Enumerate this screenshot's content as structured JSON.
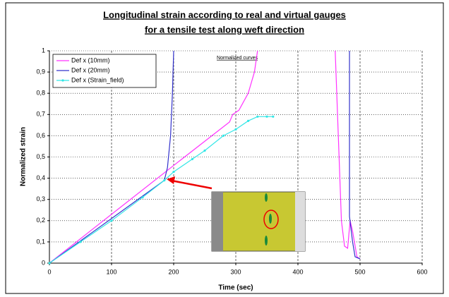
{
  "chart_data": {
    "type": "line",
    "title": "Longitudinal strain according to real and virtual gauges",
    "subtitle": "for a tensile test along weft direction",
    "annotation": "Normalized curves",
    "xlabel": "Time (sec)",
    "ylabel": "Normalized strain",
    "xlim": [
      0,
      600
    ],
    "ylim": [
      0,
      1
    ],
    "xticks": [
      0,
      100,
      200,
      300,
      400,
      500,
      600
    ],
    "yticks": [
      0,
      {
        "value": 0.1,
        "label": "0,1"
      },
      {
        "value": 0.2,
        "label": "0,2"
      },
      {
        "value": 0.3,
        "label": "0,3"
      },
      {
        "value": 0.4,
        "label": "0,4"
      },
      {
        "value": 0.5,
        "label": "0,5"
      },
      {
        "value": 0.6,
        "label": "0,6"
      },
      {
        "value": 0.7,
        "label": "0,7"
      },
      {
        "value": 0.8,
        "label": "0,8"
      },
      {
        "value": 0.9,
        "label": "0,9"
      },
      1
    ],
    "grid": true,
    "legend": "upper-left",
    "series": [
      {
        "name": "Def x (10mm)",
        "color": "#ff33ff",
        "marker": false,
        "x": [
          0,
          100,
          200,
          290,
          295,
          305,
          320,
          330,
          335,
          400,
          460,
          465,
          470,
          475,
          480,
          484,
          488,
          495,
          500
        ],
        "values": [
          0,
          0.23,
          0.46,
          0.665,
          0.7,
          0.72,
          0.8,
          0.9,
          1.0,
          null,
          1.0,
          0.6,
          0.2,
          0.08,
          0.07,
          0.2,
          0.15,
          0.03,
          0.02
        ]
      },
      {
        "name": "Def x (20mm)",
        "color": "#3333cc",
        "marker": false,
        "x": [
          0,
          100,
          185,
          190,
          195,
          198,
          200,
          400,
          483,
          483,
          488,
          492,
          500
        ],
        "values": [
          0,
          0.21,
          0.39,
          0.45,
          0.6,
          0.8,
          1.0,
          null,
          1.0,
          0.22,
          0.1,
          0.03,
          0.02
        ]
      },
      {
        "name": "Def x (Strain_field)",
        "color": "#33e6e6",
        "marker": true,
        "x": [
          0,
          50,
          100,
          150,
          185,
          200,
          230,
          250,
          280,
          300,
          320,
          335,
          350,
          360
        ],
        "values": [
          0,
          0.1,
          0.2,
          0.31,
          0.39,
          0.43,
          0.49,
          0.53,
          0.6,
          0.63,
          0.67,
          0.69,
          0.69,
          0.69
        ]
      }
    ]
  }
}
